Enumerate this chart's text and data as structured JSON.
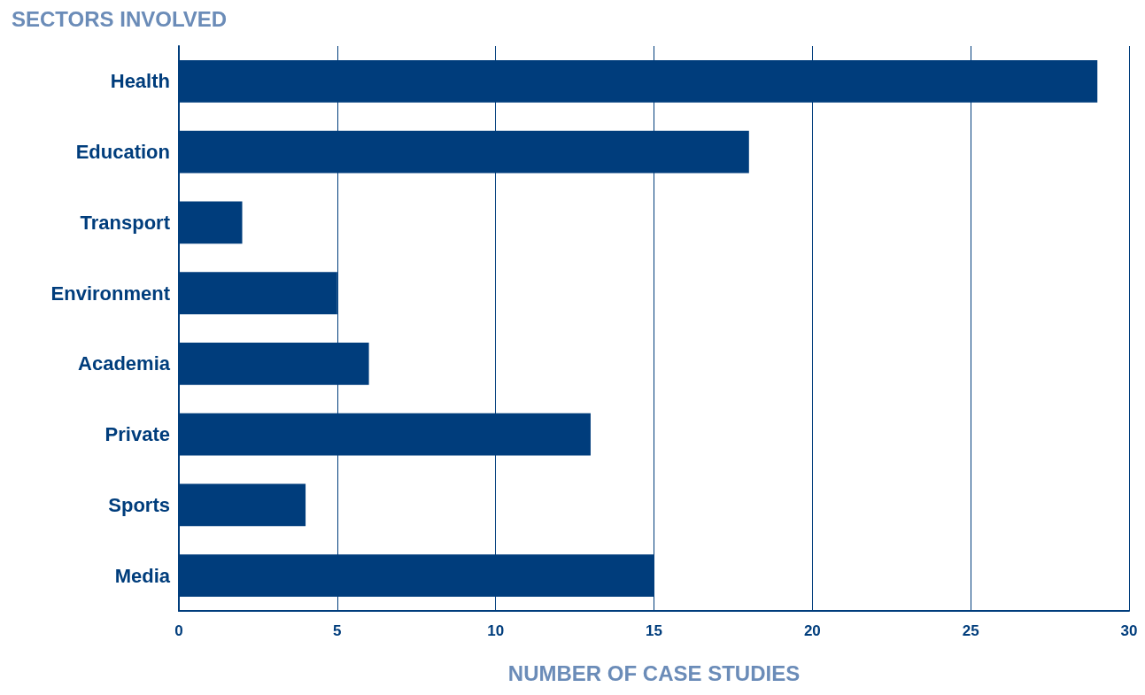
{
  "chart_data": {
    "type": "bar",
    "orientation": "horizontal",
    "title": "SECTORS INVOLVED",
    "xlabel": "NUMBER OF CASE STUDIES",
    "categories": [
      "Health",
      "Education",
      "Transport",
      "Environment",
      "Academia",
      "Private",
      "Sports",
      "Media"
    ],
    "values": [
      29,
      18,
      2,
      5,
      6,
      13,
      4,
      15
    ],
    "color": "#003d7c",
    "xlim": [
      0,
      30
    ],
    "xticks": [
      0,
      5,
      10,
      15,
      20,
      25,
      30
    ],
    "grid": "x"
  }
}
